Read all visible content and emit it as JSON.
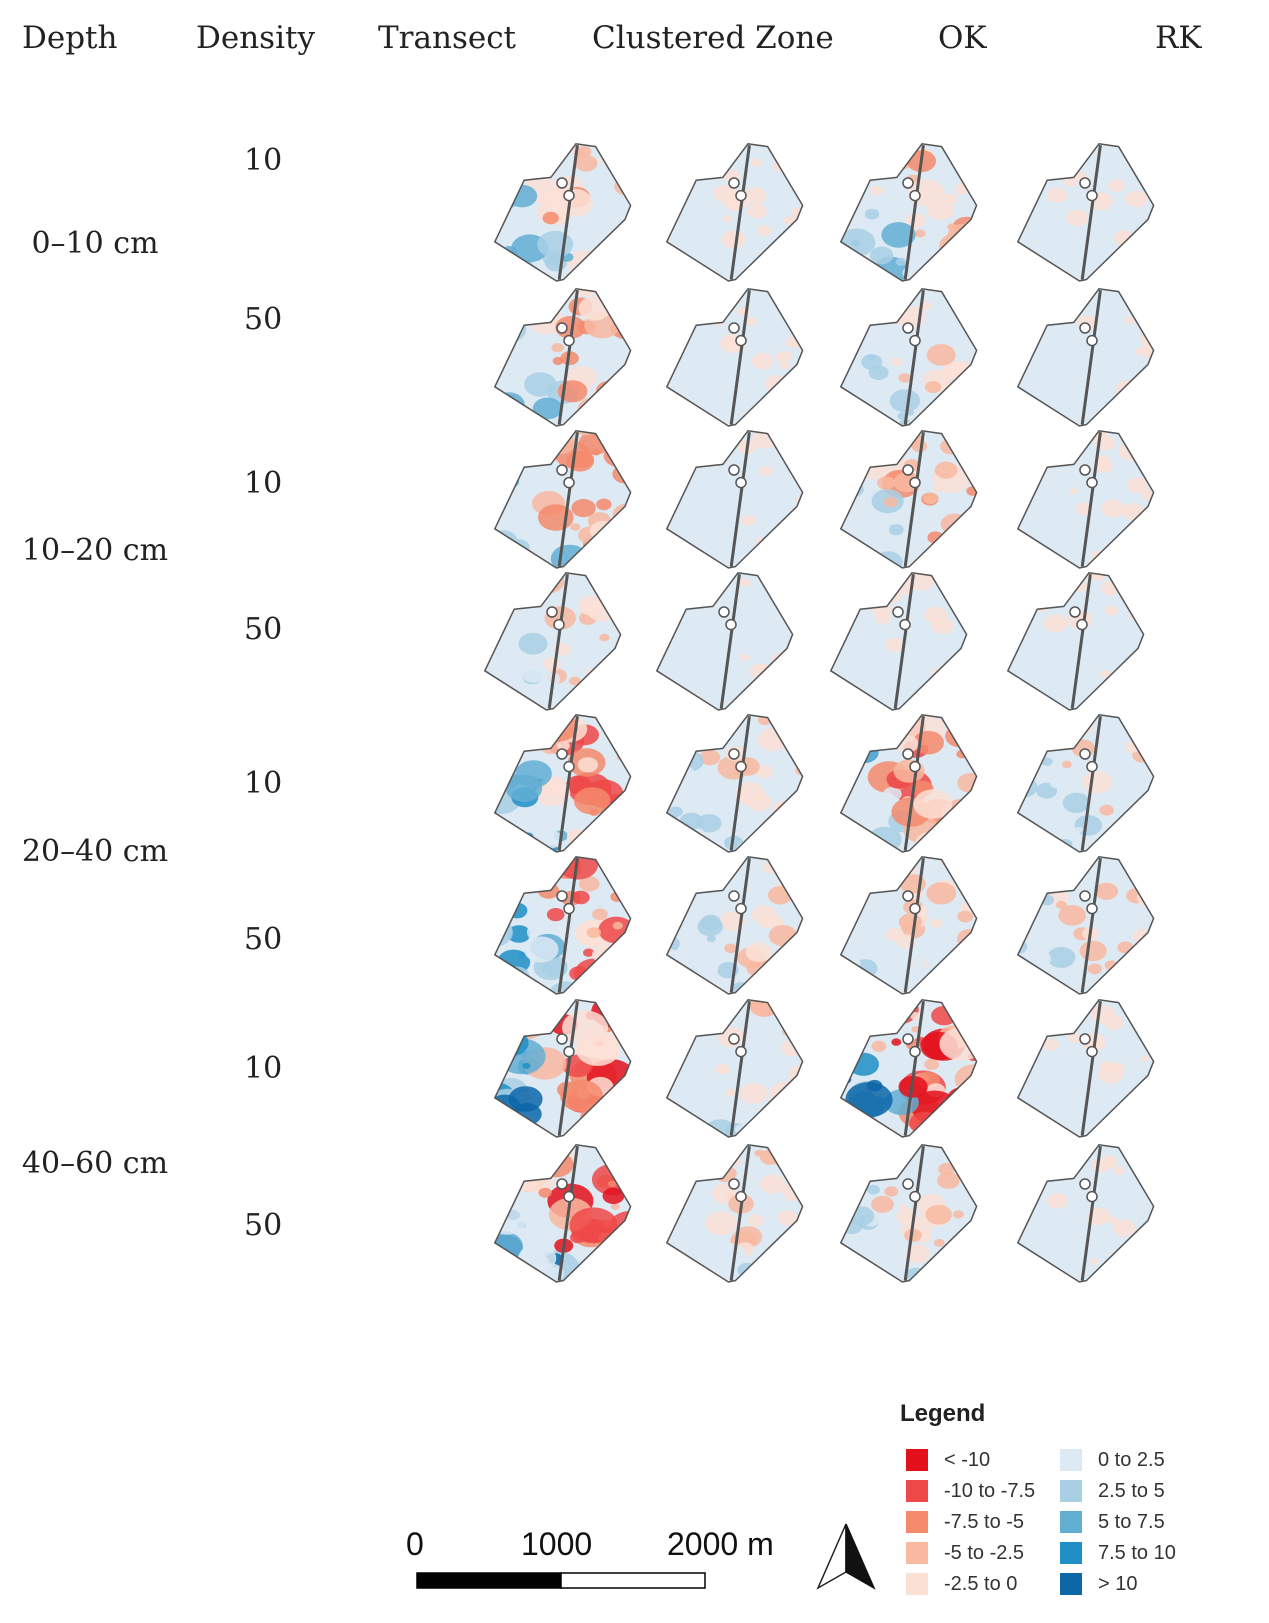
{
  "headers": {
    "depth": "Depth",
    "density": "Density",
    "transect": "Transect",
    "clustered": "Clustered Zone",
    "ok": "OK",
    "rk": "RK"
  },
  "depths": [
    "0–10 cm",
    "10–20 cm",
    "20–40 cm",
    "40–60 cm"
  ],
  "densities": [
    "10",
    "50",
    "10",
    "50",
    "10",
    "50",
    "10",
    "50"
  ],
  "legend": {
    "title": "Legend",
    "items": [
      {
        "label": "< -10",
        "color": "#e3101c"
      },
      {
        "label": "-10 to -7.5",
        "color": "#ef4848"
      },
      {
        "label": "-7.5 to -5",
        "color": "#f58a6c"
      },
      {
        "label": "-5 to -2.5",
        "color": "#f8b9a0"
      },
      {
        "label": "-2.5 to 0",
        "color": "#fbe0d6"
      },
      {
        "label": "0 to 2.5",
        "color": "#dde9f3"
      },
      {
        "label": "2.5 to 5",
        "color": "#a9cfe4"
      },
      {
        "label": "5 to 7.5",
        "color": "#63aed3"
      },
      {
        "label": "7.5 to 10",
        "color": "#1f8fc6"
      },
      {
        "label": "> 10",
        "color": "#0d66a8"
      }
    ]
  },
  "scale_bar": {
    "labels": [
      "0",
      "1000",
      "2000 m"
    ]
  },
  "north_arrow": "north-arrow-icon",
  "map_intensity": [
    [
      3,
      1,
      3,
      1
    ],
    [
      3,
      1,
      2,
      1
    ],
    [
      3,
      1,
      3,
      1
    ],
    [
      2,
      1,
      1,
      1
    ],
    [
      4,
      2,
      4,
      2
    ],
    [
      4,
      2,
      2,
      2
    ],
    [
      5,
      2,
      5,
      1
    ],
    [
      5,
      2,
      2,
      1
    ]
  ]
}
